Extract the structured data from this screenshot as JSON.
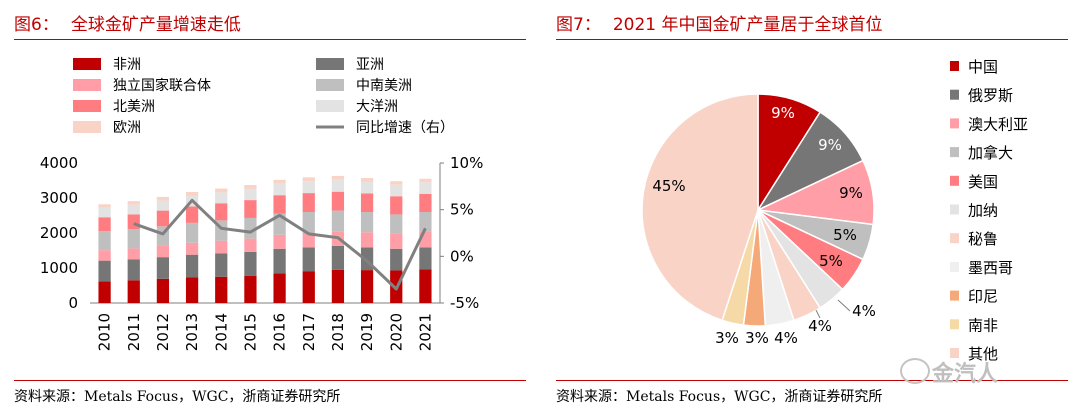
{
  "left": {
    "fig_label": "图6：",
    "fig_title": "全球金矿产量增速走低",
    "source": "资料来源：Metals Focus，WGC，浙商证券研究所"
  },
  "right": {
    "fig_label": "图7：",
    "fig_title": "2021 年中国金矿产量居于全球首位",
    "source": "资料来源：Metals Focus，WGC，浙商证券研究所"
  },
  "watermark": "金汽人",
  "colors": {
    "accent": "#c00000",
    "africa": "#c00000",
    "asia": "#767676",
    "cis": "#ff9ea6",
    "latam": "#bfbfbf",
    "namerica": "#ff7c80",
    "oceania": "#e3e3e3",
    "europe": "#f9d3c6",
    "growth_line": "#808080"
  },
  "chart_data": [
    {
      "type": "bar",
      "stacked": true,
      "categories": [
        "2010",
        "2011",
        "2012",
        "2013",
        "2014",
        "2015",
        "2016",
        "2017",
        "2018",
        "2019",
        "2020",
        "2021"
      ],
      "series": [
        {
          "name": "非洲",
          "color": "#c00000",
          "values": [
            620,
            650,
            690,
            730,
            750,
            780,
            850,
            900,
            950,
            940,
            930,
            960
          ]
        },
        {
          "name": "亚洲",
          "color": "#767676",
          "values": [
            590,
            600,
            620,
            650,
            670,
            680,
            700,
            690,
            680,
            650,
            620,
            630
          ]
        },
        {
          "name": "独立国家联合体",
          "color": "#ff9ea6",
          "values": [
            300,
            310,
            320,
            340,
            360,
            380,
            400,
            410,
            420,
            430,
            440,
            450
          ]
        },
        {
          "name": "中南美洲",
          "color": "#bfbfbf",
          "values": [
            540,
            550,
            560,
            570,
            580,
            590,
            600,
            600,
            590,
            580,
            540,
            560
          ]
        },
        {
          "name": "北美洲",
          "color": "#ff7c80",
          "values": [
            400,
            420,
            450,
            470,
            490,
            510,
            530,
            540,
            540,
            530,
            520,
            520
          ]
        },
        {
          "name": "大洋洲",
          "color": "#e3e3e3",
          "values": [
            270,
            280,
            290,
            300,
            310,
            320,
            330,
            340,
            340,
            330,
            330,
            330
          ]
        },
        {
          "name": "欧洲",
          "color": "#f9d3c6",
          "values": [
            100,
            100,
            100,
            110,
            110,
            110,
            110,
            110,
            110,
            110,
            100,
            100
          ]
        }
      ],
      "line": {
        "name": "同比增速（右）",
        "color": "#808080",
        "values": [
          null,
          3.5,
          2.4,
          6.0,
          3.0,
          2.6,
          4.4,
          2.4,
          2.0,
          -0.5,
          -3.5,
          3.0
        ]
      },
      "ylim": [
        0,
        4000
      ],
      "yticks": [
        "0",
        "1000",
        "2000",
        "3000",
        "4000"
      ],
      "y2lim": [
        -5,
        10
      ],
      "y2ticks": [
        "-5%",
        "0%",
        "5%",
        "10%"
      ],
      "legend": [
        "非洲",
        "亚洲",
        "独立国家联合体",
        "中南美洲",
        "北美洲",
        "大洋洲",
        "欧洲",
        "同比增速（右）"
      ],
      "legend_position": "top"
    },
    {
      "type": "pie",
      "labels": [
        "中国",
        "俄罗斯",
        "澳大利亚",
        "加拿大",
        "美国",
        "加纳",
        "秘鲁",
        "墨西哥",
        "印尼",
        "南非",
        "其他"
      ],
      "values": [
        9,
        9,
        9,
        5,
        5,
        4,
        4,
        4,
        3,
        3,
        45
      ],
      "value_labels": [
        "9%",
        "9%",
        "9%",
        "5%",
        "5%",
        "4%",
        "4%",
        "4%",
        "3%",
        "3%",
        "45%"
      ],
      "colors": [
        "#c00000",
        "#767676",
        "#ff9ea6",
        "#bfbfbf",
        "#ff7c80",
        "#e3e3e3",
        "#f9d3c6",
        "#efefef",
        "#f5a878",
        "#f5d9a6",
        "#f9d3c6"
      ],
      "legend_position": "right"
    }
  ]
}
